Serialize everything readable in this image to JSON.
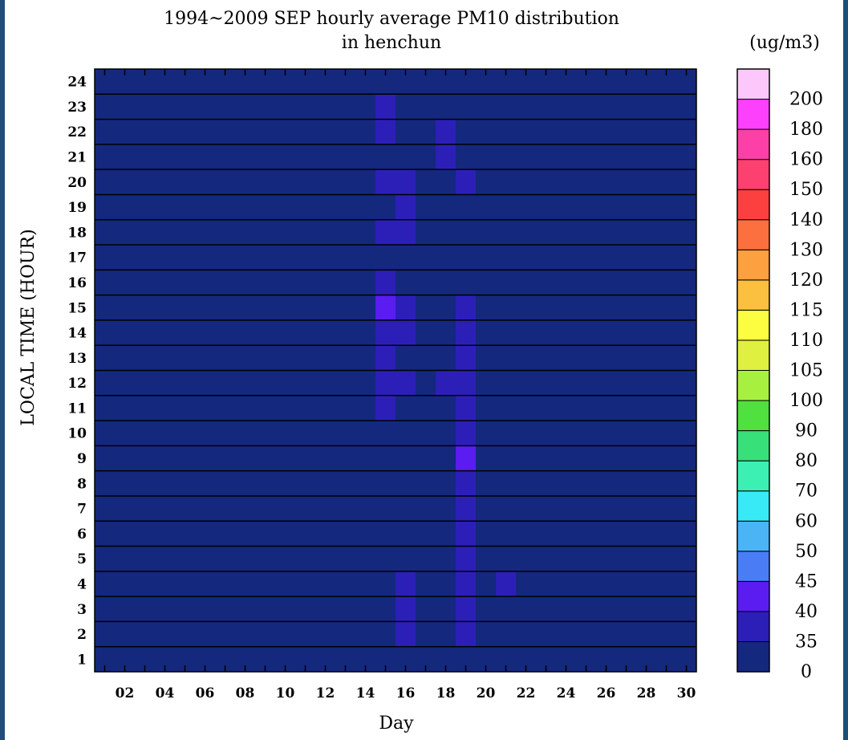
{
  "chart_data": {
    "type": "heatmap",
    "title_line1": "1994~2009 SEP hourly average PM10 distribution",
    "title_line2": "in henchun",
    "unit_label": "(ug/m3)",
    "xlabel": "Day",
    "ylabel": "LOCAL TIME (HOUR)",
    "x_range": [
      1,
      30
    ],
    "x_tick_labels": [
      "02",
      "04",
      "06",
      "08",
      "10",
      "12",
      "14",
      "16",
      "18",
      "20",
      "22",
      "24",
      "26",
      "28",
      "30"
    ],
    "y_range": [
      1,
      24
    ],
    "y_tick_labels": [
      "1",
      "2",
      "3",
      "4",
      "5",
      "6",
      "7",
      "8",
      "9",
      "10",
      "11",
      "12",
      "13",
      "14",
      "15",
      "16",
      "17",
      "18",
      "19",
      "20",
      "21",
      "22",
      "23",
      "24"
    ],
    "background_level": 0,
    "cells": [
      {
        "day": 15,
        "hour": 23,
        "level": 1
      },
      {
        "day": 15,
        "hour": 22,
        "level": 1
      },
      {
        "day": 18,
        "hour": 22,
        "level": 1
      },
      {
        "day": 18,
        "hour": 21,
        "level": 1
      },
      {
        "day": 15,
        "hour": 20,
        "level": 1
      },
      {
        "day": 16,
        "hour": 20,
        "level": 1
      },
      {
        "day": 19,
        "hour": 20,
        "level": 1
      },
      {
        "day": 16,
        "hour": 19,
        "level": 1
      },
      {
        "day": 15,
        "hour": 18,
        "level": 1
      },
      {
        "day": 16,
        "hour": 18,
        "level": 1
      },
      {
        "day": 15,
        "hour": 16,
        "level": 1
      },
      {
        "day": 15,
        "hour": 15,
        "level": 2
      },
      {
        "day": 16,
        "hour": 15,
        "level": 1
      },
      {
        "day": 19,
        "hour": 15,
        "level": 1
      },
      {
        "day": 15,
        "hour": 14,
        "level": 1
      },
      {
        "day": 16,
        "hour": 14,
        "level": 1
      },
      {
        "day": 19,
        "hour": 14,
        "level": 1
      },
      {
        "day": 15,
        "hour": 13,
        "level": 1
      },
      {
        "day": 19,
        "hour": 13,
        "level": 1
      },
      {
        "day": 15,
        "hour": 12,
        "level": 1
      },
      {
        "day": 16,
        "hour": 12,
        "level": 1
      },
      {
        "day": 18,
        "hour": 12,
        "level": 1
      },
      {
        "day": 19,
        "hour": 12,
        "level": 1
      },
      {
        "day": 15,
        "hour": 11,
        "level": 1
      },
      {
        "day": 19,
        "hour": 11,
        "level": 1
      },
      {
        "day": 19,
        "hour": 10,
        "level": 1
      },
      {
        "day": 19,
        "hour": 9,
        "level": 2
      },
      {
        "day": 19,
        "hour": 8,
        "level": 1
      },
      {
        "day": 19,
        "hour": 7,
        "level": 1
      },
      {
        "day": 19,
        "hour": 6,
        "level": 1
      },
      {
        "day": 19,
        "hour": 5,
        "level": 1
      },
      {
        "day": 16,
        "hour": 4,
        "level": 1
      },
      {
        "day": 19,
        "hour": 4,
        "level": 1
      },
      {
        "day": 21,
        "hour": 4,
        "level": 1
      },
      {
        "day": 16,
        "hour": 3,
        "level": 1
      },
      {
        "day": 19,
        "hour": 3,
        "level": 1
      },
      {
        "day": 16,
        "hour": 2,
        "level": 1
      },
      {
        "day": 19,
        "hour": 2,
        "level": 1
      }
    ],
    "colorbar": {
      "labels": [
        "0",
        "35",
        "40",
        "45",
        "50",
        "60",
        "70",
        "80",
        "90",
        "100",
        "105",
        "110",
        "115",
        "120",
        "130",
        "140",
        "150",
        "160",
        "180",
        "200"
      ],
      "colors": [
        "#14287e",
        "#2c1fb8",
        "#5a1cf0",
        "#4a7df5",
        "#4ab4f5",
        "#38eaf5",
        "#3cf0b4",
        "#38e07a",
        "#50e040",
        "#a8f040",
        "#e0f040",
        "#fcfc40",
        "#fcc040",
        "#fca040",
        "#fc7040",
        "#fc4040",
        "#fc4070",
        "#fc40a8",
        "#fc40fc",
        "#fcc8fc"
      ]
    },
    "grid": "horizontal lines at each hour"
  }
}
